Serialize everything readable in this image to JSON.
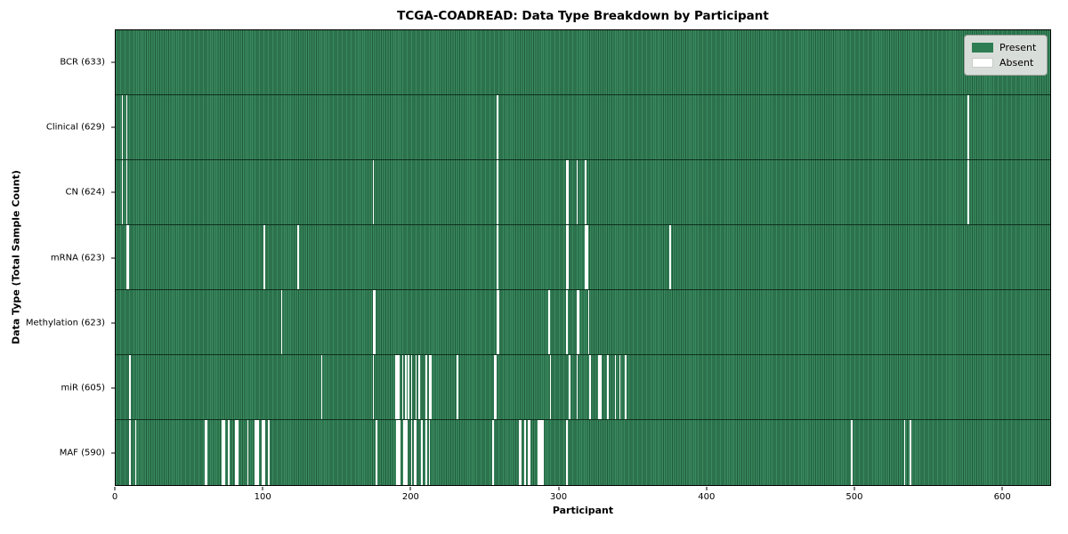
{
  "chart_data": {
    "type": "heatmap",
    "title": "TCGA-COADREAD: Data Type Breakdown by Participant",
    "xlabel": "Participant",
    "ylabel": "Data Type (Total Sample Count)",
    "n_participants": 633,
    "xlim": [
      0,
      633
    ],
    "x_ticks": [
      0,
      100,
      200,
      300,
      400,
      500,
      600
    ],
    "grid": false,
    "legend_position": "upper right",
    "legend": [
      {
        "label": "Present",
        "color": "#2e7d52"
      },
      {
        "label": "Absent",
        "color": "#ffffff"
      }
    ],
    "cell_colors": {
      "present_light": "#3b8a60",
      "present_dark": "#1e5a39",
      "absent": "#ffffff"
    },
    "rows": [
      {
        "data_type": "BCR",
        "label": "BCR (633)",
        "present_count": 633,
        "absent_count": 0,
        "absent_participants": []
      },
      {
        "data_type": "Clinical",
        "label": "Clinical (629)",
        "present_count": 629,
        "absent_count": 4,
        "absent_participants": [
          4,
          7,
          258,
          577
        ]
      },
      {
        "data_type": "CN",
        "label": "CN (624)",
        "present_count": 624,
        "absent_count": 9,
        "absent_participants": [
          4,
          7,
          174,
          258,
          305,
          306,
          312,
          318,
          577
        ]
      },
      {
        "data_type": "mRNA",
        "label": "mRNA (623)",
        "present_count": 623,
        "absent_count": 10,
        "absent_participants": [
          7,
          8,
          100,
          123,
          258,
          305,
          306,
          318,
          319,
          375
        ]
      },
      {
        "data_type": "Methylation",
        "label": "Methylation (623)",
        "present_count": 623,
        "absent_count": 10,
        "absent_participants": [
          112,
          174,
          175,
          258,
          259,
          293,
          305,
          312,
          313,
          320
        ]
      },
      {
        "data_type": "miR",
        "label": "miR (605)",
        "present_count": 605,
        "absent_count": 28,
        "absent_participants": [
          9,
          139,
          174,
          189,
          190,
          191,
          194,
          196,
          198,
          200,
          203,
          205,
          210,
          212,
          213,
          231,
          256,
          257,
          294,
          307,
          312,
          321,
          327,
          328,
          333,
          338,
          341,
          345
        ]
      },
      {
        "data_type": "MAF",
        "label": "MAF (590)",
        "present_count": 590,
        "absent_count": 43,
        "absent_participants": [
          9,
          13,
          60,
          61,
          72,
          73,
          76,
          81,
          82,
          89,
          94,
          95,
          96,
          99,
          100,
          103,
          176,
          190,
          191,
          192,
          195,
          196,
          197,
          200,
          202,
          203,
          207,
          210,
          212,
          255,
          273,
          274,
          277,
          279,
          280,
          286,
          287,
          288,
          289,
          305,
          498,
          534,
          538
        ]
      }
    ]
  }
}
